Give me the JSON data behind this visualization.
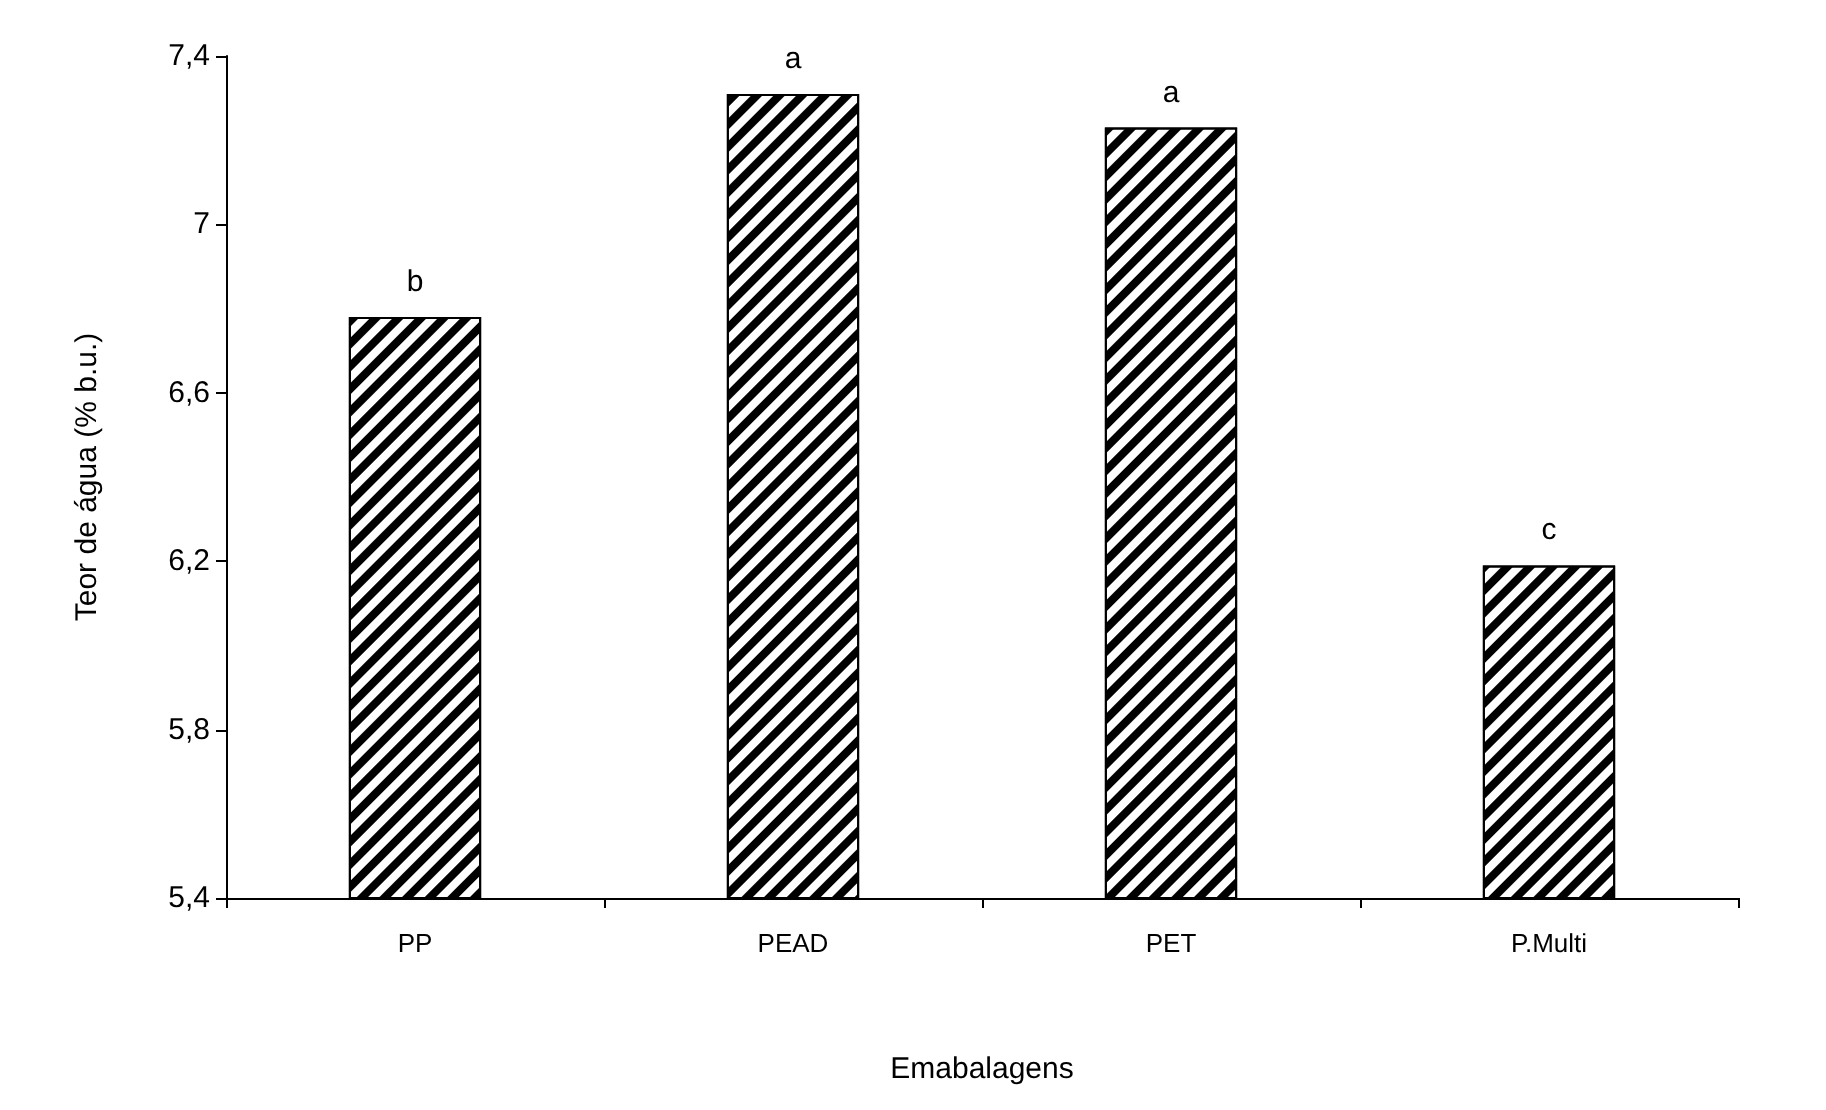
{
  "chart_data": {
    "type": "bar",
    "xlabel": "Emabalagens",
    "ylabel": "Teor de água (% b.u.)",
    "categories": [
      "PP",
      "PEAD",
      "PET",
      "P.Multi"
    ],
    "values": [
      6.78,
      7.31,
      7.23,
      6.19
    ],
    "color": "#000000",
    "ylim": [
      5.4,
      7.4
    ],
    "yticks": [
      {
        "value": 5.4,
        "label": "5,4"
      },
      {
        "value": 5.8,
        "label": "5,8"
      },
      {
        "value": 6.2,
        "label": "6,2"
      },
      {
        "value": 6.6,
        "label": "6,6"
      },
      {
        "value": 7,
        "label": "7"
      },
      {
        "value": 7.4,
        "label": "7,4"
      }
    ],
    "annotations": [
      {
        "text": "b",
        "x": "PP",
        "y": 6.78
      },
      {
        "text": "a",
        "x": "PEAD",
        "y": 7.31
      },
      {
        "text": "a",
        "x": "PET",
        "y": 7.23
      },
      {
        "text": "c",
        "x": "P.Multi",
        "y": 6.19
      }
    ]
  }
}
